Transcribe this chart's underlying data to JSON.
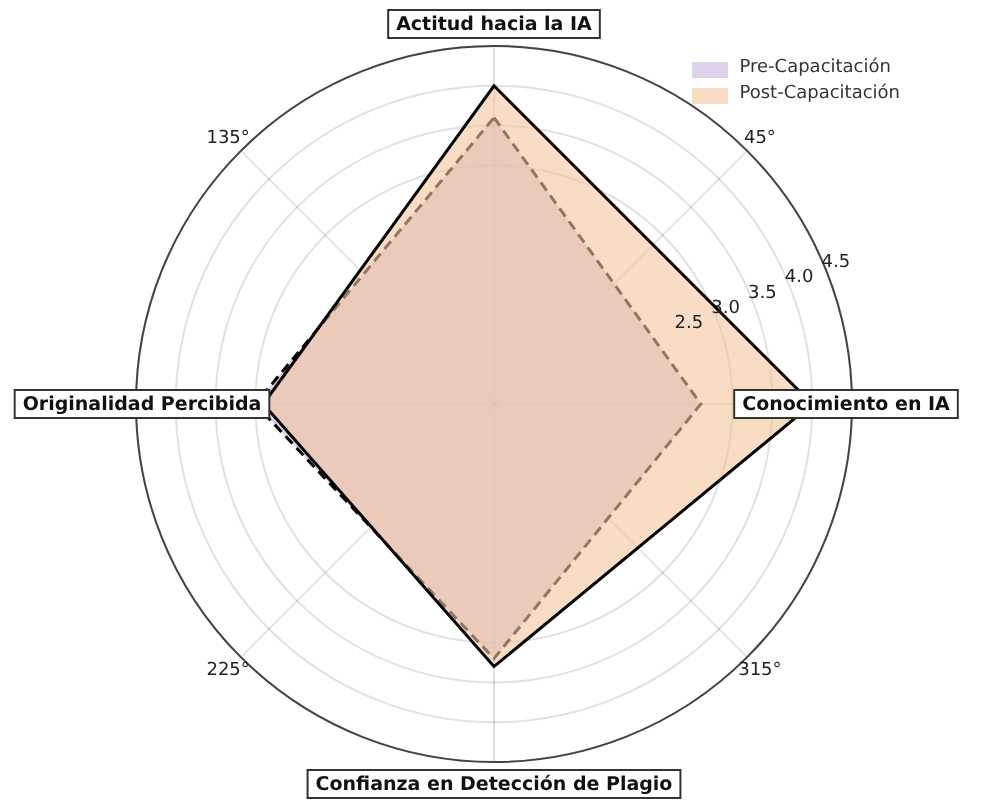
{
  "chart_data": {
    "type": "radar",
    "categories": [
      "Actitud hacia la IA",
      "Conocimiento en IA",
      "Confianza en Detección de Plagio",
      "Originalidad Percibida"
    ],
    "series": [
      {
        "name": "Pre-Capacitación",
        "color": "#c7b3dd",
        "line_style": "dashed",
        "values": [
          3.6,
          2.6,
          3.2,
          3.0
        ]
      },
      {
        "name": "Post-Capacitación",
        "color": "#f5c49c",
        "line_style": "solid",
        "values": [
          4.0,
          4.0,
          3.3,
          2.9
        ]
      }
    ],
    "ylim": [
      0,
      4.5
    ],
    "yticks": [
      2.5,
      {
        "value": 3,
        "label": "3.0"
      },
      3.5,
      {
        "value": 4,
        "label": "4.0"
      },
      4.5
    ],
    "annotations": [
      "45°",
      "135°",
      "225°",
      "315°"
    ],
    "legend": "top right",
    "marker": "none",
    "grid": true
  }
}
